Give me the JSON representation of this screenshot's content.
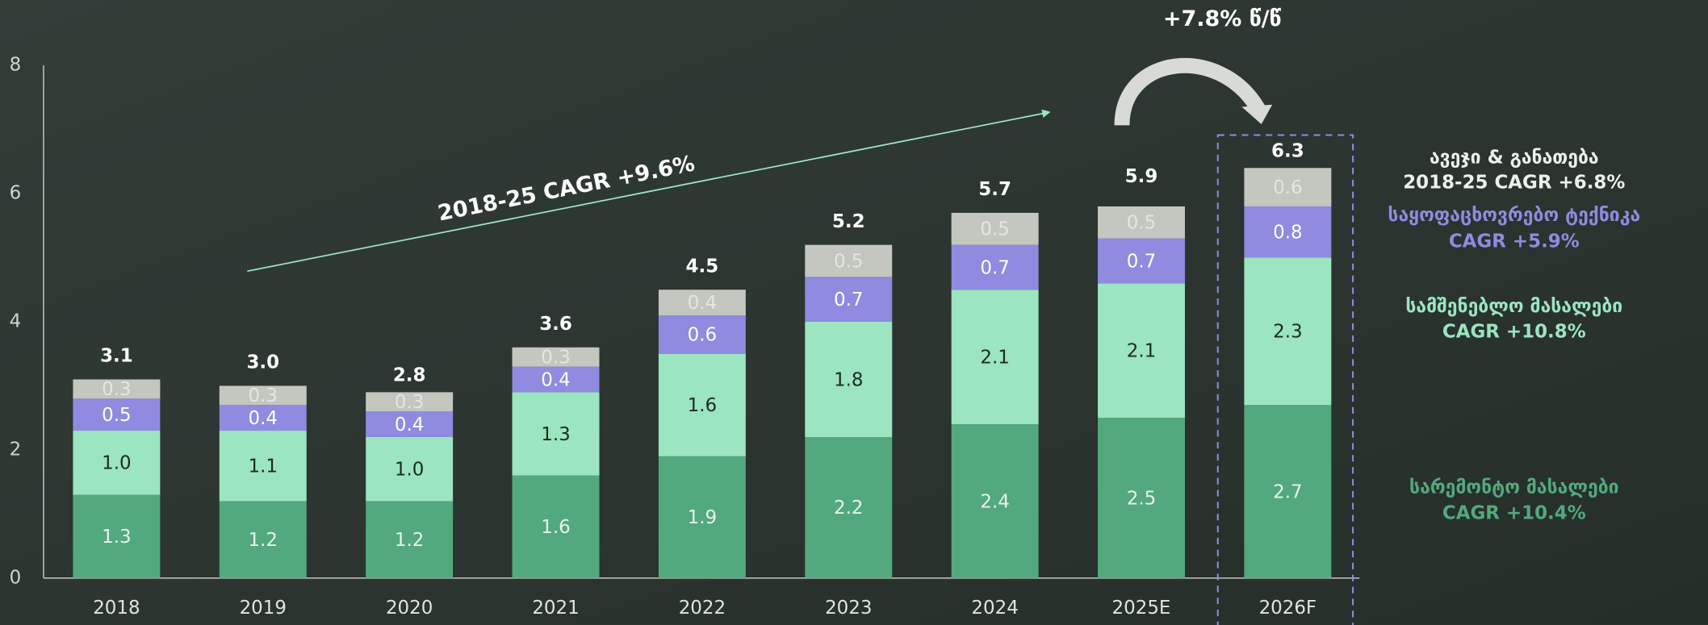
{
  "chart_data": {
    "type": "stacked_bar",
    "categories": [
      "2018",
      "2019",
      "2020",
      "2021",
      "2022",
      "2023",
      "2024",
      "2025E",
      "2026F"
    ],
    "series": [
      {
        "name": "სარემონტო მასალები",
        "cagr_label": "CAGR +10.4%",
        "color": "#52a97d",
        "text_color": "#e8f3ec",
        "values": [
          1.3,
          1.2,
          1.2,
          1.6,
          1.9,
          2.2,
          2.4,
          2.5,
          2.7
        ],
        "value_labels": [
          "1.3",
          "1.2",
          "1.2",
          "1.6",
          "1.9",
          "2.2",
          "2.4",
          "2.5",
          "2.7"
        ]
      },
      {
        "name": "სამშენებლო მასალები",
        "cagr_label": "CAGR +10.8%",
        "color": "#9be5c0",
        "text_color": "#1d2a23",
        "values": [
          1.0,
          1.1,
          1.0,
          1.3,
          1.6,
          1.8,
          2.1,
          2.1,
          2.3
        ],
        "value_labels": [
          "1.0",
          "1.1",
          "1.0",
          "1.3",
          "1.6",
          "1.8",
          "2.1",
          "2.1",
          "2.3"
        ]
      },
      {
        "name": "საყოფაცხოვრებო ტექნიკა",
        "cagr_label": "CAGR +5.9%",
        "color": "#8f8be0",
        "text_color": "#ffffff",
        "values": [
          0.5,
          0.4,
          0.4,
          0.4,
          0.6,
          0.7,
          0.7,
          0.7,
          0.8
        ],
        "value_labels": [
          "0.5",
          "0.4",
          "0.4",
          "0.4",
          "0.6",
          "0.7",
          "0.7",
          "0.7",
          "0.8"
        ]
      },
      {
        "name": "ავეჯი & განათება",
        "cagr_label": "2018-25 CAGR  +6.8%",
        "color": "#c4c6c0",
        "text_color": "#eef0ec",
        "values": [
          0.3,
          0.3,
          0.3,
          0.3,
          0.4,
          0.5,
          0.5,
          0.5,
          0.6
        ],
        "value_labels": [
          "0.3",
          "0.3",
          "0.3",
          "0.3",
          "0.4",
          "0.5",
          "0.5",
          "0.5",
          "0.6"
        ]
      }
    ],
    "totals": [
      3.1,
      3.0,
      2.8,
      3.6,
      4.5,
      5.2,
      5.7,
      5.9,
      6.3
    ],
    "total_labels": [
      "3.1",
      "3.0",
      "2.8",
      "3.6",
      "4.5",
      "5.2",
      "5.7",
      "5.9",
      "6.3"
    ],
    "annotations": [
      "2018-25 CAGR +9.6%",
      "+7.8% წ/წ"
    ],
    "ylim": [
      0,
      8
    ],
    "yticks": [
      0,
      2,
      4,
      6,
      8
    ],
    "grid": false
  }
}
